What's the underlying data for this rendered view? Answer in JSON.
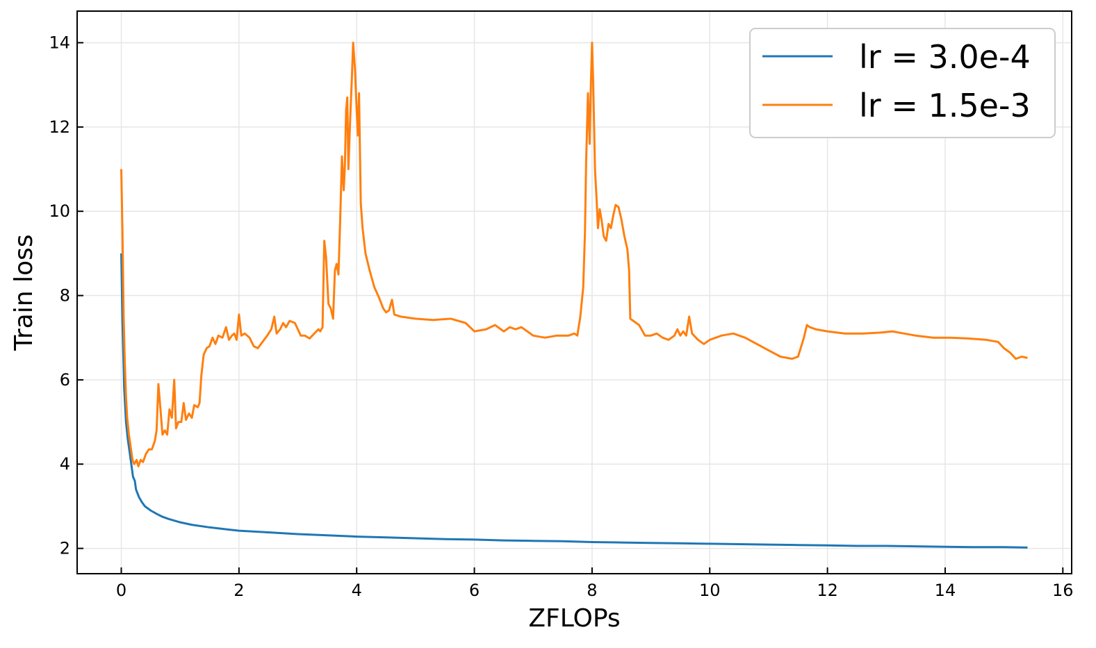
{
  "chart_data": {
    "type": "line",
    "xlabel": "ZFLOPs",
    "ylabel": "Train loss",
    "xlim": [
      -0.75,
      16.15
    ],
    "ylim": [
      1.4,
      14.75
    ],
    "xticks": [
      0,
      2,
      4,
      6,
      8,
      10,
      12,
      14,
      16
    ],
    "yticks": [
      2,
      4,
      6,
      8,
      10,
      12,
      14
    ],
    "grid": true,
    "legend_position": "top-right",
    "series": [
      {
        "name": "lr = 3.0e-4",
        "color": "#1f77b4",
        "points": [
          [
            0.0,
            9.0
          ],
          [
            0.02,
            7.4
          ],
          [
            0.05,
            5.8
          ],
          [
            0.08,
            5.0
          ],
          [
            0.11,
            4.6
          ],
          [
            0.14,
            4.3
          ],
          [
            0.17,
            4.0
          ],
          [
            0.2,
            3.7
          ],
          [
            0.23,
            3.6
          ],
          [
            0.25,
            3.4
          ],
          [
            0.3,
            3.22
          ],
          [
            0.35,
            3.1
          ],
          [
            0.4,
            3.0
          ],
          [
            0.5,
            2.9
          ],
          [
            0.6,
            2.82
          ],
          [
            0.7,
            2.75
          ],
          [
            0.8,
            2.7
          ],
          [
            1.0,
            2.62
          ],
          [
            1.2,
            2.56
          ],
          [
            1.5,
            2.5
          ],
          [
            1.8,
            2.45
          ],
          [
            2.0,
            2.42
          ],
          [
            2.5,
            2.38
          ],
          [
            3.0,
            2.34
          ],
          [
            3.5,
            2.31
          ],
          [
            4.0,
            2.28
          ],
          [
            4.5,
            2.26
          ],
          [
            5.0,
            2.24
          ],
          [
            5.5,
            2.22
          ],
          [
            6.0,
            2.21
          ],
          [
            6.5,
            2.19
          ],
          [
            7.0,
            2.18
          ],
          [
            7.5,
            2.17
          ],
          [
            8.0,
            2.15
          ],
          [
            8.5,
            2.14
          ],
          [
            9.0,
            2.13
          ],
          [
            9.5,
            2.12
          ],
          [
            10.0,
            2.11
          ],
          [
            10.5,
            2.1
          ],
          [
            11.0,
            2.09
          ],
          [
            11.5,
            2.08
          ],
          [
            12.0,
            2.07
          ],
          [
            12.5,
            2.06
          ],
          [
            13.0,
            2.06
          ],
          [
            13.5,
            2.05
          ],
          [
            14.0,
            2.04
          ],
          [
            14.5,
            2.03
          ],
          [
            15.0,
            2.03
          ],
          [
            15.4,
            2.02
          ]
        ]
      },
      {
        "name": "lr = 1.5e-3",
        "color": "#ff7f0e",
        "points": [
          [
            0.0,
            11.0
          ],
          [
            0.02,
            9.5
          ],
          [
            0.04,
            7.5
          ],
          [
            0.06,
            6.4
          ],
          [
            0.08,
            5.6
          ],
          [
            0.1,
            5.1
          ],
          [
            0.13,
            4.7
          ],
          [
            0.16,
            4.4
          ],
          [
            0.19,
            4.1
          ],
          [
            0.22,
            4.0
          ],
          [
            0.26,
            4.1
          ],
          [
            0.29,
            3.95
          ],
          [
            0.33,
            4.1
          ],
          [
            0.37,
            4.05
          ],
          [
            0.42,
            4.25
          ],
          [
            0.47,
            4.35
          ],
          [
            0.52,
            4.35
          ],
          [
            0.57,
            4.55
          ],
          [
            0.6,
            4.8
          ],
          [
            0.63,
            5.9
          ],
          [
            0.66,
            5.4
          ],
          [
            0.7,
            4.7
          ],
          [
            0.74,
            4.8
          ],
          [
            0.78,
            4.7
          ],
          [
            0.82,
            5.3
          ],
          [
            0.86,
            5.1
          ],
          [
            0.9,
            6.0
          ],
          [
            0.93,
            4.85
          ],
          [
            0.97,
            5.0
          ],
          [
            1.02,
            5.0
          ],
          [
            1.06,
            5.45
          ],
          [
            1.1,
            5.05
          ],
          [
            1.15,
            5.2
          ],
          [
            1.2,
            5.1
          ],
          [
            1.24,
            5.4
          ],
          [
            1.3,
            5.35
          ],
          [
            1.33,
            5.45
          ],
          [
            1.36,
            6.1
          ],
          [
            1.4,
            6.6
          ],
          [
            1.45,
            6.75
          ],
          [
            1.5,
            6.8
          ],
          [
            1.55,
            7.0
          ],
          [
            1.6,
            6.85
          ],
          [
            1.65,
            7.05
          ],
          [
            1.72,
            7.0
          ],
          [
            1.78,
            7.25
          ],
          [
            1.83,
            6.95
          ],
          [
            1.88,
            7.05
          ],
          [
            1.92,
            7.1
          ],
          [
            1.96,
            6.95
          ],
          [
            2.0,
            7.55
          ],
          [
            2.04,
            7.05
          ],
          [
            2.1,
            7.1
          ],
          [
            2.18,
            7.0
          ],
          [
            2.25,
            6.8
          ],
          [
            2.32,
            6.75
          ],
          [
            2.4,
            6.9
          ],
          [
            2.48,
            7.05
          ],
          [
            2.55,
            7.2
          ],
          [
            2.6,
            7.5
          ],
          [
            2.64,
            7.1
          ],
          [
            2.7,
            7.2
          ],
          [
            2.75,
            7.35
          ],
          [
            2.8,
            7.25
          ],
          [
            2.86,
            7.4
          ],
          [
            2.95,
            7.35
          ],
          [
            3.05,
            7.05
          ],
          [
            3.12,
            7.05
          ],
          [
            3.2,
            6.98
          ],
          [
            3.28,
            7.1
          ],
          [
            3.35,
            7.2
          ],
          [
            3.38,
            7.15
          ],
          [
            3.42,
            7.25
          ],
          [
            3.45,
            9.3
          ],
          [
            3.48,
            8.9
          ],
          [
            3.52,
            7.8
          ],
          [
            3.56,
            7.7
          ],
          [
            3.6,
            7.45
          ],
          [
            3.63,
            8.6
          ],
          [
            3.66,
            8.75
          ],
          [
            3.69,
            8.5
          ],
          [
            3.72,
            9.8
          ],
          [
            3.75,
            11.3
          ],
          [
            3.78,
            10.5
          ],
          [
            3.8,
            11.1
          ],
          [
            3.82,
            12.4
          ],
          [
            3.84,
            12.7
          ],
          [
            3.86,
            11.0
          ],
          [
            3.89,
            12.2
          ],
          [
            3.92,
            13.2
          ],
          [
            3.94,
            14.0
          ],
          [
            3.97,
            13.4
          ],
          [
            4.0,
            12.4
          ],
          [
            4.02,
            11.8
          ],
          [
            4.04,
            12.8
          ],
          [
            4.07,
            10.2
          ],
          [
            4.1,
            9.6
          ],
          [
            4.15,
            9.0
          ],
          [
            4.22,
            8.6
          ],
          [
            4.3,
            8.2
          ],
          [
            4.38,
            7.95
          ],
          [
            4.45,
            7.7
          ],
          [
            4.5,
            7.6
          ],
          [
            4.55,
            7.65
          ],
          [
            4.6,
            7.9
          ],
          [
            4.64,
            7.55
          ],
          [
            4.75,
            7.5
          ],
          [
            5.0,
            7.45
          ],
          [
            5.3,
            7.42
          ],
          [
            5.6,
            7.45
          ],
          [
            5.85,
            7.35
          ],
          [
            6.0,
            7.15
          ],
          [
            6.2,
            7.2
          ],
          [
            6.35,
            7.3
          ],
          [
            6.5,
            7.15
          ],
          [
            6.6,
            7.25
          ],
          [
            6.7,
            7.2
          ],
          [
            6.8,
            7.25
          ],
          [
            7.0,
            7.05
          ],
          [
            7.2,
            7.0
          ],
          [
            7.4,
            7.05
          ],
          [
            7.6,
            7.05
          ],
          [
            7.7,
            7.1
          ],
          [
            7.75,
            7.05
          ],
          [
            7.8,
            7.5
          ],
          [
            7.85,
            8.2
          ],
          [
            7.88,
            9.5
          ],
          [
            7.9,
            11.2
          ],
          [
            7.93,
            12.8
          ],
          [
            7.96,
            11.6
          ],
          [
            7.98,
            13.0
          ],
          [
            8.0,
            14.0
          ],
          [
            8.02,
            13.0
          ],
          [
            8.05,
            11.0
          ],
          [
            8.08,
            10.2
          ],
          [
            8.1,
            9.6
          ],
          [
            8.13,
            10.05
          ],
          [
            8.16,
            9.8
          ],
          [
            8.2,
            9.4
          ],
          [
            8.24,
            9.3
          ],
          [
            8.28,
            9.7
          ],
          [
            8.32,
            9.6
          ],
          [
            8.36,
            9.9
          ],
          [
            8.4,
            10.15
          ],
          [
            8.45,
            10.1
          ],
          [
            8.5,
            9.8
          ],
          [
            8.55,
            9.4
          ],
          [
            8.6,
            9.1
          ],
          [
            8.63,
            8.6
          ],
          [
            8.65,
            7.45
          ],
          [
            8.7,
            7.4
          ],
          [
            8.8,
            7.3
          ],
          [
            8.9,
            7.05
          ],
          [
            9.0,
            7.05
          ],
          [
            9.1,
            7.1
          ],
          [
            9.2,
            7.0
          ],
          [
            9.3,
            6.95
          ],
          [
            9.4,
            7.05
          ],
          [
            9.45,
            7.2
          ],
          [
            9.5,
            7.05
          ],
          [
            9.55,
            7.15
          ],
          [
            9.6,
            7.05
          ],
          [
            9.65,
            7.5
          ],
          [
            9.7,
            7.1
          ],
          [
            9.8,
            6.95
          ],
          [
            9.9,
            6.85
          ],
          [
            10.0,
            6.95
          ],
          [
            10.2,
            7.05
          ],
          [
            10.4,
            7.1
          ],
          [
            10.6,
            7.0
          ],
          [
            10.8,
            6.85
          ],
          [
            11.0,
            6.7
          ],
          [
            11.2,
            6.55
          ],
          [
            11.4,
            6.5
          ],
          [
            11.5,
            6.55
          ],
          [
            11.6,
            7.0
          ],
          [
            11.65,
            7.3
          ],
          [
            11.7,
            7.25
          ],
          [
            11.8,
            7.2
          ],
          [
            12.0,
            7.15
          ],
          [
            12.3,
            7.1
          ],
          [
            12.6,
            7.1
          ],
          [
            12.9,
            7.12
          ],
          [
            13.1,
            7.15
          ],
          [
            13.3,
            7.1
          ],
          [
            13.5,
            7.05
          ],
          [
            13.8,
            7.0
          ],
          [
            14.1,
            7.0
          ],
          [
            14.4,
            6.98
          ],
          [
            14.7,
            6.95
          ],
          [
            14.9,
            6.9
          ],
          [
            15.0,
            6.75
          ],
          [
            15.1,
            6.65
          ],
          [
            15.2,
            6.5
          ],
          [
            15.3,
            6.55
          ],
          [
            15.4,
            6.52
          ]
        ]
      }
    ]
  }
}
